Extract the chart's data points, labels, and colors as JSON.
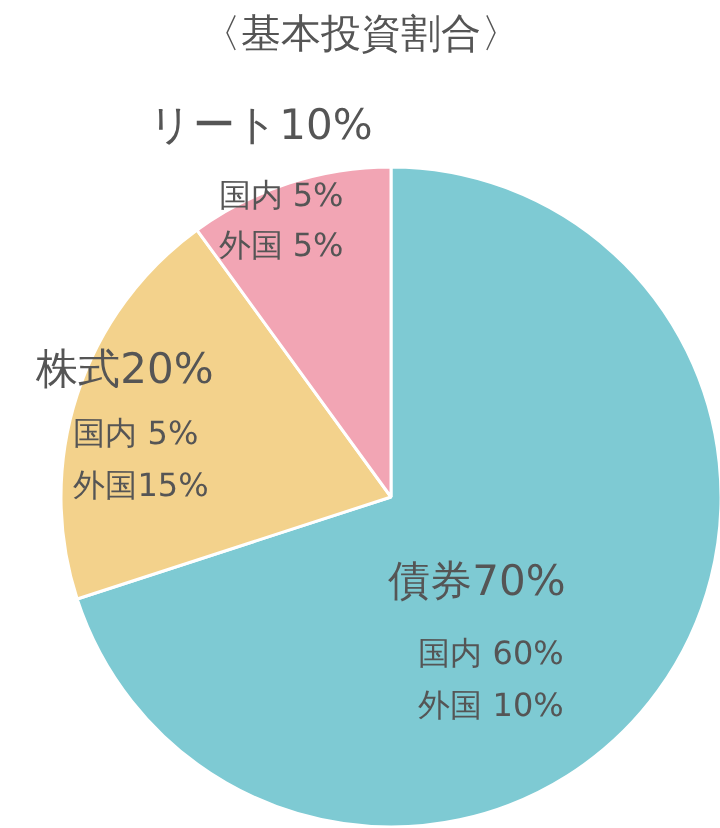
{
  "chart_data": {
    "type": "pie",
    "title": "〈基本投資割合〉",
    "categories": [
      "債券",
      "株式",
      "リート"
    ],
    "values": [
      70,
      20,
      10
    ],
    "value_labels": [
      "70%",
      "20%",
      "10%"
    ],
    "colors": [
      "#7ecad3",
      "#f3d28c",
      "#f2a5b4"
    ],
    "annotations": [
      "国内 60%",
      "外国 10%",
      "国内  5%",
      "外国15%",
      "国内 5%",
      "外国 5%"
    ]
  }
}
